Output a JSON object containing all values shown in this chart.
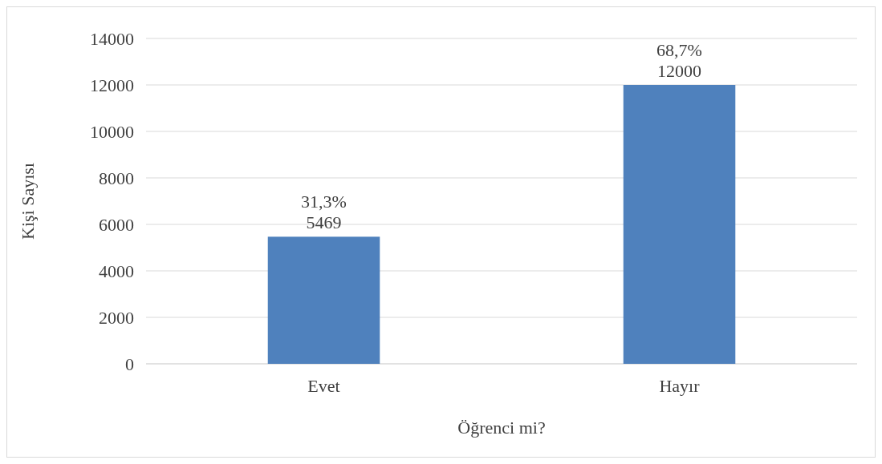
{
  "chart_data": {
    "type": "bar",
    "xlabel": "Öğrenci mi?",
    "ylabel": "Kişi Sayısı",
    "categories": [
      "Evet",
      "Hayır"
    ],
    "values": [
      5469,
      12000
    ],
    "color": "#4f81bd",
    "value_labels": [
      "31,3%\n5469",
      "68,7%\n12000"
    ],
    "ylim": [
      0,
      14000
    ],
    "yticks": [
      0,
      2000,
      4000,
      6000,
      8000,
      10000,
      12000,
      14000
    ],
    "grid": "y"
  }
}
